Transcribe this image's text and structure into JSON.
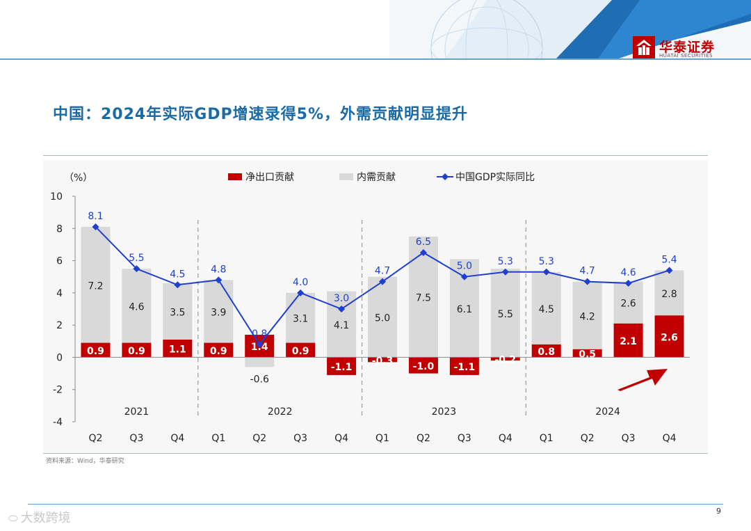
{
  "header": {
    "logo_cn": "华泰证券",
    "logo_en": "HUATAI SECURITIES",
    "brand_color": "#c00000",
    "accent_color": "#1a6aa5"
  },
  "title": "中国：2024年实际GDP增速录得5%，外需贡献明显提升",
  "source": "资料来源：Wind，华泰研究",
  "page_number": "9",
  "watermark": "大数跨境",
  "colors": {
    "net_export": "#c00000",
    "domestic": "#d9d9d9",
    "gdp_line": "#1f3fd0"
  },
  "chart_data": {
    "type": "bar",
    "y_unit_label": "（%）",
    "ylim": [
      -4,
      10
    ],
    "yticks": [
      "10",
      "8",
      "6",
      "4",
      "2",
      "0",
      "-2",
      "-4"
    ],
    "categories": [
      "Q2",
      "Q3",
      "Q4",
      "Q1",
      "Q2",
      "Q3",
      "Q4",
      "Q1",
      "Q2",
      "Q3",
      "Q4",
      "Q1",
      "Q2",
      "Q3",
      "Q4"
    ],
    "years": [
      {
        "label": "2021",
        "start": 0,
        "end": 2
      },
      {
        "label": "2022",
        "start": 3,
        "end": 6
      },
      {
        "label": "2023",
        "start": 7,
        "end": 10
      },
      {
        "label": "2024",
        "start": 11,
        "end": 14
      }
    ],
    "legend": [
      "净出口贡献",
      "内需贡献",
      "中国GDP实际同比"
    ],
    "series": [
      {
        "name": "净出口贡献",
        "kind": "bar",
        "values": [
          0.9,
          0.9,
          1.1,
          0.9,
          1.4,
          0.9,
          -1.1,
          -0.3,
          -1.0,
          -1.1,
          -0.2,
          0.8,
          0.5,
          2.1,
          2.6
        ],
        "labels": [
          "0.9",
          "0.9",
          "1.1",
          "0.9",
          "1.4",
          "0.9",
          "-1.1",
          "-0.3",
          "-1.0",
          "-1.1",
          "-0.2",
          "0.8",
          "0.5",
          "2.1",
          "2.6"
        ]
      },
      {
        "name": "内需贡献",
        "kind": "bar",
        "values": [
          7.2,
          4.6,
          3.5,
          3.9,
          -0.6,
          3.1,
          4.1,
          5.0,
          7.5,
          6.1,
          5.5,
          4.5,
          4.2,
          2.6,
          2.8
        ],
        "labels": [
          "7.2",
          "4.6",
          "3.5",
          "3.9",
          "-0.6",
          "3.1",
          "4.1",
          "5.0",
          "7.5",
          "6.1",
          "5.5",
          "4.5",
          "4.2",
          "2.6",
          "2.8"
        ]
      },
      {
        "name": "中国GDP实际同比",
        "kind": "line",
        "values": [
          8.1,
          5.5,
          4.5,
          4.8,
          0.8,
          4.0,
          3.0,
          4.7,
          6.5,
          5.0,
          5.3,
          5.3,
          4.7,
          4.6,
          5.4
        ],
        "labels": [
          "8.1",
          "5.5",
          "4.5",
          "4.8",
          "0.8",
          "4.0",
          "3.0",
          "4.7",
          "6.5",
          "5.0",
          "5.3",
          "5.3",
          "4.7",
          "4.6",
          "5.4"
        ]
      }
    ],
    "annotations": [
      "trend-arrow at 2024 Q4 pointing up-right"
    ]
  }
}
